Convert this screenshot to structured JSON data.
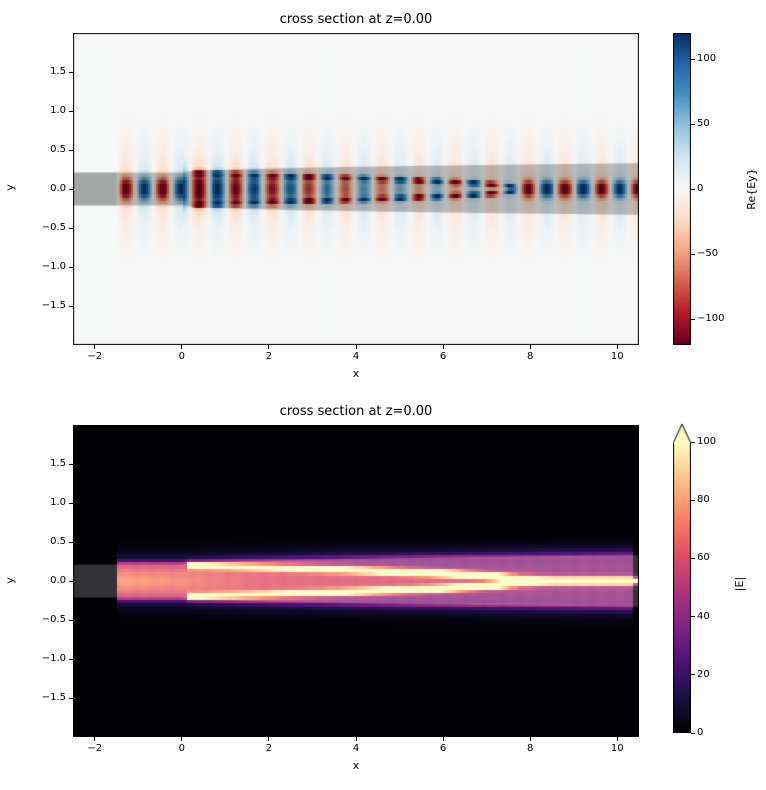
{
  "figure": {
    "background": "#ffffff",
    "description": "matplotlib figure with two field cross-section heatmaps of an inverse-taper waveguide simulation"
  },
  "chart_data": [
    {
      "id": "re_ey",
      "type": "heatmap",
      "title": "cross section at z=0.00",
      "xlabel": "x",
      "ylabel": "y",
      "x_range": [
        -2.5,
        10.5
      ],
      "y_range": [
        -2.0,
        2.0
      ],
      "x_ticks": [
        -2,
        0,
        2,
        4,
        6,
        8,
        10
      ],
      "y_ticks": [
        1.5,
        1.0,
        0.5,
        0.0,
        -0.5,
        -1.0,
        -1.5
      ],
      "grid": false,
      "colorbar": {
        "label": "Re{Ey}",
        "ticks": [
          100,
          50,
          0,
          -50,
          -100
        ],
        "vmin": -120,
        "vmax": 120,
        "colormap": "RdBu",
        "extend": "none"
      },
      "field_model": {
        "kind": "standing_wave_re_ey",
        "wavelength": 0.84,
        "phase_red_x": -1.28,
        "amplitude_max": 118,
        "field_x_start": -1.5,
        "tail_amplitude": 20,
        "tail_width": 0.55,
        "core_amplitude": 115,
        "core_width": 0.14,
        "edge_amplitude": 112,
        "edge_width": 0.035,
        "post_tip_core_width": 0.105
      }
    },
    {
      "id": "abs_e",
      "type": "heatmap",
      "title": "cross section at z=0.00",
      "xlabel": "x",
      "ylabel": "y",
      "x_range": [
        -2.5,
        10.5
      ],
      "y_range": [
        -2.0,
        2.0
      ],
      "x_ticks": [
        -2,
        0,
        2,
        4,
        6,
        8,
        10
      ],
      "y_ticks": [
        1.5,
        1.0,
        0.5,
        0.0,
        -0.5,
        -1.0,
        -1.5
      ],
      "grid": false,
      "colorbar": {
        "label": "|E|",
        "ticks": [
          100,
          80,
          60,
          40,
          20,
          0
        ],
        "vmin": 0,
        "vmax": 100,
        "colormap": "magma",
        "extend": "max"
      },
      "field_model": {
        "kind": "intensity_abs_e",
        "wavelength": 0.84,
        "field_x_start": -1.5,
        "field_x_end": 10.37,
        "band_level": 30,
        "glow_level": 12,
        "glow_width": 0.16,
        "inner_level": 22,
        "ridge_level_min": 62,
        "ridge_level_max": 102,
        "ridge_width": 0.045,
        "line_level": 100,
        "line_width": 0.052,
        "tip_glow": 30
      }
    }
  ],
  "structure": {
    "description": "inverse taper waveguide overlay",
    "core_half_width": 0.21,
    "slab_half_width_max": 0.33,
    "slab_taper_start_x": 0.0,
    "slab_taper_end_x": 10.5,
    "tip_x": 7.75,
    "tip_taper_start_x": 0.0,
    "source_strip_x": [
      -2.5,
      -1.5
    ],
    "overlay_top": "rgba(0,0,0,0.24)",
    "overlay_top_extra_left": "rgba(0,0,0,0.12)",
    "overlay_bottom": "rgba(255,255,255,0.2)"
  },
  "colormaps": {
    "RdBu": [
      "#67001f",
      "#b2182b",
      "#d6604d",
      "#f4a582",
      "#fddbc7",
      "#f7f7f7",
      "#d1e5f0",
      "#92c5de",
      "#4393c3",
      "#2166ac",
      "#053061"
    ],
    "magma": [
      "#000004",
      "#1c1044",
      "#4f127b",
      "#812581",
      "#b5367a",
      "#e55064",
      "#fb8761",
      "#fec287",
      "#fcfdbf"
    ]
  },
  "frame_color": "#000000"
}
